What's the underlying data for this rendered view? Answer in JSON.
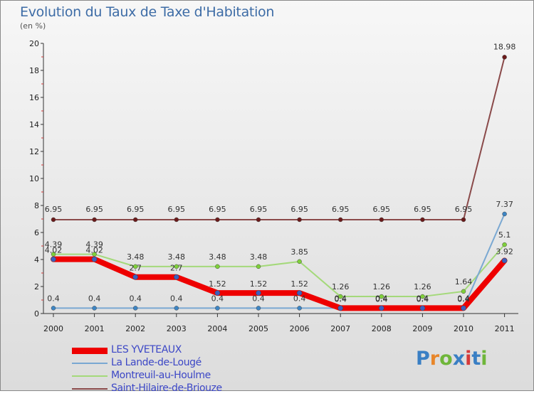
{
  "title": "Evolution du Taux de Taxe d'Habitation",
  "unit": "(en %)",
  "logo": {
    "text": "Proxiti",
    "colors": [
      "#3a7fc4",
      "#e8862a",
      "#6fb63a",
      "#3a7fc4",
      "#d63a3a",
      "#3a7fc4",
      "#6fb63a"
    ]
  },
  "chart_data": {
    "type": "line",
    "x": [
      "2000",
      "2001",
      "2002",
      "2003",
      "2004",
      "2005",
      "2006",
      "2007",
      "2008",
      "2009",
      "2010",
      "2011"
    ],
    "ylim": [
      0,
      20
    ],
    "yticks": [
      "0",
      "2",
      "4",
      "6",
      "8",
      "10",
      "12",
      "14",
      "16",
      "18",
      "20"
    ],
    "grid": false,
    "legend_position": "bottom-left",
    "series": [
      {
        "name": "LES YVETEAUX",
        "color": "#ee0000",
        "width": 8,
        "values": [
          4.02,
          4.02,
          2.7,
          2.7,
          1.52,
          1.52,
          1.52,
          0.4,
          0.4,
          0.4,
          0.4,
          3.92
        ],
        "labels": [
          "4.02",
          "4.02",
          "2.7",
          "2.7",
          "1.52",
          "1.52",
          "1.52",
          "0.4",
          "0.4",
          "0.4",
          "0.4",
          "3.92"
        ]
      },
      {
        "name": "La Lande-de-Lougé",
        "color": "#7aa8d2",
        "width": 2,
        "values": [
          0.4,
          0.4,
          0.4,
          0.4,
          0.4,
          0.4,
          0.4,
          0.4,
          0.4,
          0.4,
          0.4,
          7.37
        ],
        "labels": [
          "0.4",
          "0.4",
          "0.4",
          "0.4",
          "0.4",
          "0.4",
          "0.4",
          "0.4",
          "0.4",
          "0.4",
          "0.4",
          "7.37"
        ]
      },
      {
        "name": "Montreuil-au-Houlme",
        "color": "#a4d97a",
        "width": 2,
        "values": [
          4.39,
          4.39,
          3.48,
          3.48,
          3.48,
          3.48,
          3.85,
          1.26,
          1.26,
          1.26,
          1.64,
          5.1
        ],
        "labels": [
          "4.39",
          "4.39",
          "3.48",
          "3.48",
          "3.48",
          "3.48",
          "3.85",
          "1.26",
          "1.26",
          "1.26",
          "1.64",
          "5.1"
        ]
      },
      {
        "name": "Saint-Hilaire-de-Briouze",
        "color": "#8a4a4a",
        "width": 2,
        "values": [
          6.95,
          6.95,
          6.95,
          6.95,
          6.95,
          6.95,
          6.95,
          6.95,
          6.95,
          6.95,
          6.95,
          18.98
        ],
        "labels": [
          "6.95",
          "6.95",
          "6.95",
          "6.95",
          "6.95",
          "6.95",
          "6.95",
          "6.95",
          "6.95",
          "6.95",
          "6.95",
          "18.98"
        ]
      }
    ]
  }
}
